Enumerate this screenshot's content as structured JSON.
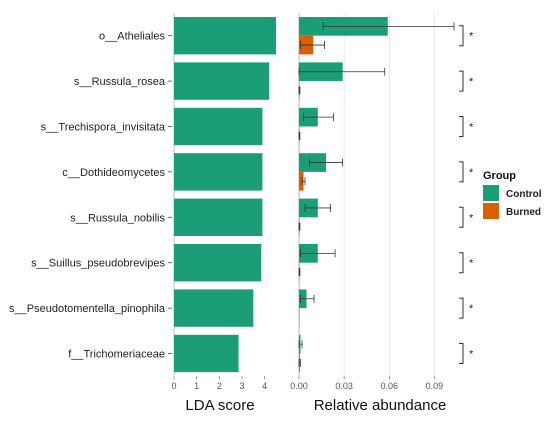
{
  "chart_data": {
    "type": "bar",
    "categories": [
      "o__Atheliales",
      "s__Russula_rosea",
      "s__Trechispora_invisitata",
      "c__Dothideomycetes",
      "s__Russula_nobilis",
      "s__Suillus_pseudobrevipes",
      "s__Pseudotomentella_pinophila",
      "f__Trichomeriaceae"
    ],
    "lda": {
      "xlabel": "LDA score",
      "xlim": [
        0,
        4.5
      ],
      "ticks": [
        0,
        1,
        2,
        3,
        4
      ],
      "values": [
        4.5,
        4.2,
        3.9,
        3.9,
        3.9,
        3.85,
        3.5,
        2.85
      ]
    },
    "abundance": {
      "xlabel": "Relative abundance",
      "xlim": [
        0,
        0.105
      ],
      "ticks": [
        0.0,
        0.03,
        0.06,
        0.09
      ],
      "tick_labels": [
        "0.00",
        "0.03",
        "0.06",
        "0.09"
      ],
      "series": [
        {
          "name": "Control",
          "values": [
            0.059,
            0.029,
            0.0125,
            0.018,
            0.0125,
            0.0125,
            0.005,
            0.001
          ],
          "err_low": [
            0.016,
            0.0,
            0.003,
            0.007,
            0.004,
            0.001,
            0.001,
            0.0
          ],
          "err_high": [
            0.103,
            0.057,
            0.023,
            0.029,
            0.021,
            0.024,
            0.01,
            0.002
          ]
        },
        {
          "name": "Burned",
          "values": [
            0.0095,
            0.0003,
            0.0003,
            0.003,
            0.0003,
            0.0003,
            0.0002,
            0.0006
          ],
          "err_low": [
            0.001,
            0.0,
            0.0,
            0.002,
            0.0,
            0.0,
            0.0,
            0.0
          ],
          "err_high": [
            0.017,
            0.0006,
            0.0006,
            0.004,
            0.0006,
            0.0006,
            0.0004,
            0.001
          ]
        }
      ]
    },
    "significance": [
      "*",
      "*",
      "*",
      "*",
      "*",
      "*",
      "*",
      "*"
    ],
    "legend": {
      "title": "Group",
      "placement": "right",
      "items": [
        {
          "label": "Control",
          "color": "#1b9e77"
        },
        {
          "label": "Burned",
          "color": "#d95f02"
        }
      ]
    },
    "colors": {
      "lda_bar": "#1b9e77",
      "control": "#1b9e77",
      "burned": "#d95f02"
    }
  }
}
